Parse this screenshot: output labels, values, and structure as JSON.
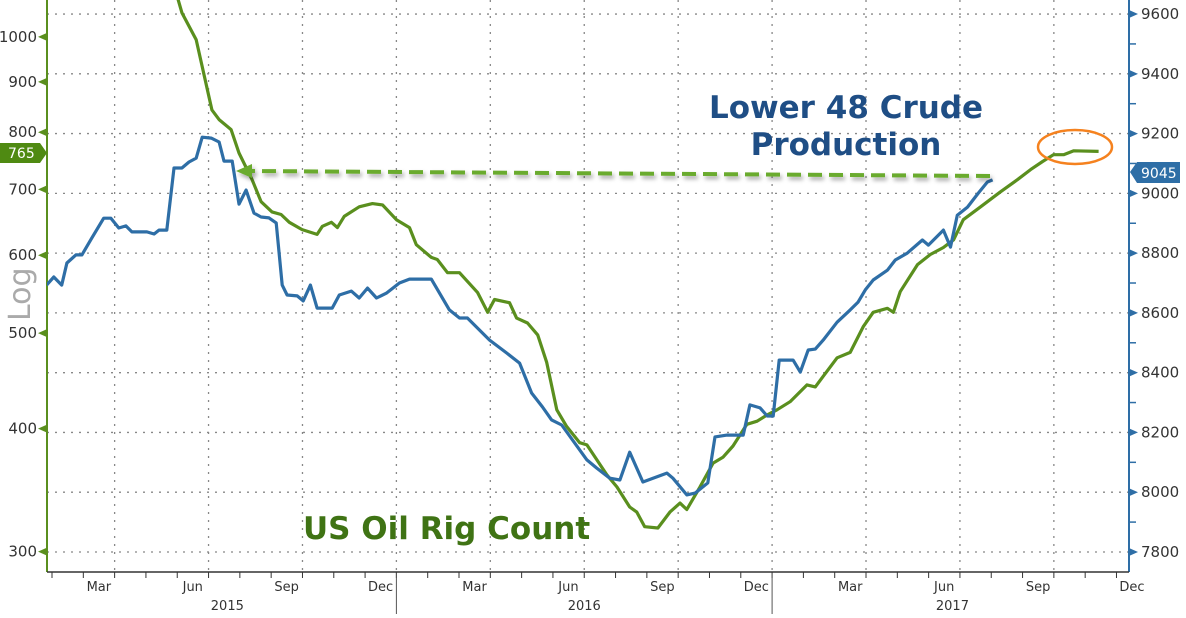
{
  "chart_data": {
    "type": "line",
    "title": "",
    "scale_label": "Log",
    "x_axis": {
      "range": [
        2015.07,
        2017.95
      ],
      "month_labels": [
        {
          "label": "Mar",
          "t": 2015.208
        },
        {
          "label": "Jun",
          "t": 2015.458
        },
        {
          "label": "Sep",
          "t": 2015.708
        },
        {
          "label": "Dec",
          "t": 2015.958
        },
        {
          "label": "Mar",
          "t": 2016.208
        },
        {
          "label": "Jun",
          "t": 2016.458
        },
        {
          "label": "Sep",
          "t": 2016.708
        },
        {
          "label": "Dec",
          "t": 2016.958
        },
        {
          "label": "Mar",
          "t": 2017.208
        },
        {
          "label": "Jun",
          "t": 2017.458
        },
        {
          "label": "Sep",
          "t": 2017.708
        },
        {
          "label": "Dec",
          "t": 2017.958
        }
      ],
      "year_labels": [
        {
          "label": "2015",
          "t": 2015.55
        },
        {
          "label": "2016",
          "t": 2016.5
        },
        {
          "label": "2017",
          "t": 2017.48
        }
      ]
    },
    "left_axis": {
      "scale": "log",
      "range": [
        286,
        1090
      ],
      "ticks": [
        "1000",
        "900",
        "800",
        "700",
        "600",
        "500",
        "400",
        "300"
      ],
      "color": "#5a8f1e",
      "last_value_label": "765",
      "last_value": 765
    },
    "right_axis": {
      "scale": "linear",
      "range": [
        7733,
        9647
      ],
      "ticks": [
        "9600",
        "9400",
        "9200",
        "9000",
        "8800",
        "8600",
        "8400",
        "8200",
        "8000",
        "7800"
      ],
      "color": "#2e6ea6",
      "last_value_label": "9045",
      "last_value": 9045
    },
    "annotations": {
      "production_label_line1": "Lower 48 Crude",
      "production_label_line2": "Production",
      "rig_label": "US Oil Rig Count",
      "highlight_color": "#f5821f",
      "arrow_color": "#6aab2e"
    },
    "series": [
      {
        "name": "US Oil Rig Count",
        "axis": "left",
        "color": "#5a8f1e",
        "points": [
          [
            2015.381,
            1225
          ],
          [
            2015.429,
            1058
          ],
          [
            2015.467,
            993
          ],
          [
            2015.509,
            843
          ],
          [
            2015.528,
            824
          ],
          [
            2015.56,
            805
          ],
          [
            2015.581,
            762
          ],
          [
            2015.616,
            716
          ],
          [
            2015.64,
            680
          ],
          [
            2015.669,
            664
          ],
          [
            2015.693,
            660
          ],
          [
            2015.715,
            648
          ],
          [
            2015.749,
            637
          ],
          [
            2015.789,
            630
          ],
          [
            2015.803,
            642
          ],
          [
            2015.827,
            648
          ],
          [
            2015.843,
            640
          ],
          [
            2015.861,
            657
          ],
          [
            2015.901,
            672
          ],
          [
            2015.936,
            677
          ],
          [
            2015.963,
            675
          ],
          [
            2016.0,
            652
          ],
          [
            2016.035,
            640
          ],
          [
            2016.053,
            615
          ],
          [
            2016.093,
            597
          ],
          [
            2016.109,
            594
          ],
          [
            2016.136,
            576
          ],
          [
            2016.168,
            576
          ],
          [
            2016.216,
            550
          ],
          [
            2016.243,
            525
          ],
          [
            2016.261,
            541
          ],
          [
            2016.301,
            537
          ],
          [
            2016.32,
            518
          ],
          [
            2016.349,
            512
          ],
          [
            2016.376,
            498
          ],
          [
            2016.4,
            467
          ],
          [
            2016.427,
            418
          ],
          [
            2016.453,
            402
          ],
          [
            2016.488,
            387
          ],
          [
            2016.507,
            385
          ],
          [
            2016.56,
            359
          ],
          [
            2016.587,
            349
          ],
          [
            2016.621,
            333
          ],
          [
            2016.64,
            329
          ],
          [
            2016.661,
            318
          ],
          [
            2016.696,
            317
          ],
          [
            2016.728,
            329
          ],
          [
            2016.755,
            336
          ],
          [
            2016.773,
            331
          ],
          [
            2016.808,
            349
          ],
          [
            2016.843,
            369
          ],
          [
            2016.869,
            374
          ],
          [
            2016.896,
            384
          ],
          [
            2016.933,
            404
          ],
          [
            2016.96,
            407
          ],
          [
            2016.987,
            413
          ],
          [
            2017.013,
            418
          ],
          [
            2017.048,
            426
          ],
          [
            2017.093,
            443
          ],
          [
            2017.115,
            441
          ],
          [
            2017.136,
            452
          ],
          [
            2017.173,
            472
          ],
          [
            2017.208,
            478
          ],
          [
            2017.243,
            508
          ],
          [
            2017.269,
            525
          ],
          [
            2017.307,
            530
          ],
          [
            2017.323,
            525
          ],
          [
            2017.341,
            551
          ],
          [
            2017.387,
            587
          ],
          [
            2017.421,
            601
          ],
          [
            2017.456,
            611
          ],
          [
            2017.483,
            622
          ],
          [
            2017.509,
            652
          ],
          [
            2017.555,
            672
          ],
          [
            2017.608,
            696
          ],
          [
            2017.653,
            716
          ],
          [
            2017.688,
            733
          ],
          [
            2017.72,
            747
          ],
          [
            2017.749,
            759
          ],
          [
            2017.776,
            759
          ],
          [
            2017.803,
            766
          ],
          [
            2017.869,
            765
          ]
        ]
      },
      {
        "name": "Lower 48 Crude Production",
        "axis": "right",
        "color": "#2e6ea6",
        "points": [
          [
            2015.069,
            8693
          ],
          [
            2015.088,
            8720
          ],
          [
            2015.109,
            8693
          ],
          [
            2015.123,
            8767
          ],
          [
            2015.147,
            8794
          ],
          [
            2015.163,
            8794
          ],
          [
            2015.189,
            8850
          ],
          [
            2015.221,
            8917
          ],
          [
            2015.24,
            8917
          ],
          [
            2015.261,
            8884
          ],
          [
            2015.28,
            8891
          ],
          [
            2015.296,
            8871
          ],
          [
            2015.336,
            8871
          ],
          [
            2015.355,
            8864
          ],
          [
            2015.368,
            8877
          ],
          [
            2015.389,
            8877
          ],
          [
            2015.408,
            9085
          ],
          [
            2015.429,
            9085
          ],
          [
            2015.448,
            9105
          ],
          [
            2015.467,
            9118
          ],
          [
            2015.483,
            9188
          ],
          [
            2015.507,
            9185
          ],
          [
            2015.528,
            9172
          ],
          [
            2015.541,
            9108
          ],
          [
            2015.563,
            9108
          ],
          [
            2015.581,
            8964
          ],
          [
            2015.6,
            9011
          ],
          [
            2015.621,
            8934
          ],
          [
            2015.64,
            8921
          ],
          [
            2015.661,
            8918
          ],
          [
            2015.68,
            8901
          ],
          [
            2015.696,
            8693
          ],
          [
            2015.709,
            8660
          ],
          [
            2015.736,
            8657
          ],
          [
            2015.752,
            8640
          ],
          [
            2015.771,
            8693
          ],
          [
            2015.789,
            8616
          ],
          [
            2015.829,
            8616
          ],
          [
            2015.848,
            8660
          ],
          [
            2015.88,
            8673
          ],
          [
            2015.901,
            8650
          ],
          [
            2015.923,
            8683
          ],
          [
            2015.947,
            8650
          ],
          [
            2015.973,
            8666
          ],
          [
            2016.008,
            8700
          ],
          [
            2016.035,
            8713
          ],
          [
            2016.093,
            8713
          ],
          [
            2016.141,
            8610
          ],
          [
            2016.168,
            8583
          ],
          [
            2016.189,
            8583
          ],
          [
            2016.248,
            8509
          ],
          [
            2016.293,
            8466
          ],
          [
            2016.328,
            8432
          ],
          [
            2016.36,
            8332
          ],
          [
            2016.389,
            8285
          ],
          [
            2016.413,
            8242
          ],
          [
            2016.44,
            8225
          ],
          [
            2016.507,
            8108
          ],
          [
            2016.533,
            8081
          ],
          [
            2016.568,
            8047
          ],
          [
            2016.595,
            8041
          ],
          [
            2016.621,
            8134
          ],
          [
            2016.656,
            8034
          ],
          [
            2016.683,
            8047
          ],
          [
            2016.72,
            8064
          ],
          [
            2016.736,
            8047
          ],
          [
            2016.773,
            7991
          ],
          [
            2016.795,
            7997
          ],
          [
            2016.829,
            8031
          ],
          [
            2016.848,
            8185
          ],
          [
            2016.88,
            8191
          ],
          [
            2016.923,
            8191
          ],
          [
            2016.941,
            8292
          ],
          [
            2016.968,
            8282
          ],
          [
            2016.987,
            8255
          ],
          [
            2017.003,
            8255
          ],
          [
            2017.019,
            8442
          ],
          [
            2017.056,
            8442
          ],
          [
            2017.075,
            8402
          ],
          [
            2017.096,
            8476
          ],
          [
            2017.115,
            8479
          ],
          [
            2017.136,
            8509
          ],
          [
            2017.173,
            8569
          ],
          [
            2017.208,
            8610
          ],
          [
            2017.229,
            8636
          ],
          [
            2017.248,
            8677
          ],
          [
            2017.269,
            8710
          ],
          [
            2017.307,
            8743
          ],
          [
            2017.328,
            8777
          ],
          [
            2017.36,
            8800
          ],
          [
            2017.4,
            8844
          ],
          [
            2017.416,
            8827
          ],
          [
            2017.456,
            8877
          ],
          [
            2017.475,
            8820
          ],
          [
            2017.493,
            8927
          ],
          [
            2017.52,
            8954
          ],
          [
            2017.549,
            9001
          ],
          [
            2017.573,
            9038
          ],
          [
            2017.587,
            9045
          ]
        ]
      }
    ]
  }
}
